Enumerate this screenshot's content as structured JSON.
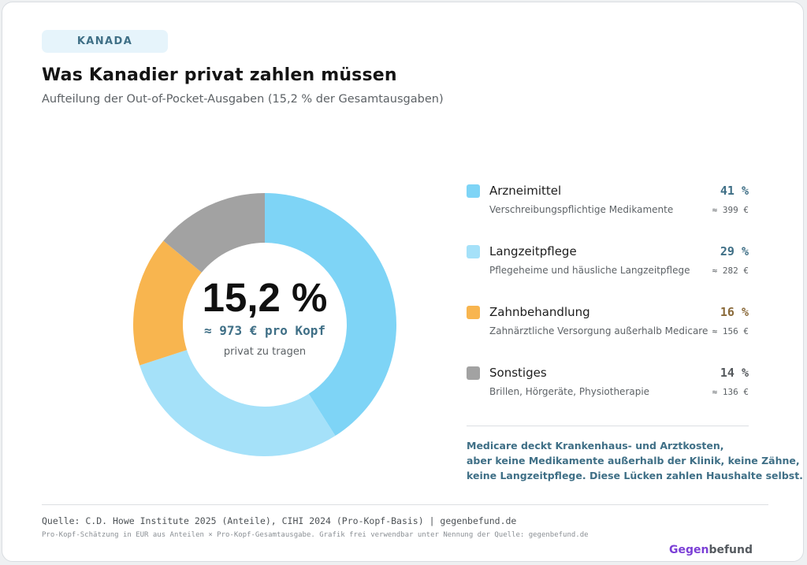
{
  "tag": "KANADA",
  "title": "Was Kanadier privat zahlen müssen",
  "subtitle": "Aufteilung der Out-of-Pocket-Ausgaben (15,2 % der Gesamtausgaben)",
  "center": {
    "value": "15,2 %",
    "per_capita": "≈ 973 € pro Kopf",
    "caption": "privat zu tragen"
  },
  "chart_data": {
    "type": "pie",
    "title": "Was Kanadier privat zahlen müssen",
    "subtitle": "Aufteilung der Out-of-Pocket-Ausgaben (15,2 % der Gesamtausgaben)",
    "donut": true,
    "legend_placement": "right",
    "categories": [
      "Arzneimittel",
      "Langzeitpflege",
      "Zahnbehandlung",
      "Sonstiges"
    ],
    "values": [
      41,
      29,
      16,
      14
    ],
    "colors": [
      "#7ed4f6",
      "#a5e1f9",
      "#f8b54f",
      "#a2a2a2"
    ]
  },
  "legend": [
    {
      "label": "Arzneimittel",
      "pct": "41 %",
      "desc": "Verschreibungspflichtige Medikamente",
      "eur": "≈ 399 €",
      "color": "#7ed4f6",
      "pct_color": "#3f6f86"
    },
    {
      "label": "Langzeitpflege",
      "pct": "29 %",
      "desc": "Pflegeheime und häusliche Langzeitpflege",
      "eur": "≈ 282 €",
      "color": "#a5e1f9",
      "pct_color": "#3f6f86"
    },
    {
      "label": "Zahnbehandlung",
      "pct": "16 %",
      "desc": "Zahnärztliche Versorgung außerhalb Medicare",
      "eur": "≈ 156 €",
      "color": "#f8b54f",
      "pct_color": "#8a6a3a"
    },
    {
      "label": "Sonstiges",
      "pct": "14 %",
      "desc": "Brillen, Hörgeräte, Physiotherapie",
      "eur": "≈ 136 €",
      "color": "#a2a2a2",
      "pct_color": "#55595d"
    }
  ],
  "note": [
    "Medicare deckt Krankenhaus- und Arztkosten,",
    "aber keine Medikamente außerhalb der Klinik, keine Zähne,",
    "keine Langzeitpflege. Diese Lücken zahlen Haushalte selbst."
  ],
  "footer": {
    "source": "Quelle: C.D. Howe Institute 2025 (Anteile), CIHI 2024 (Pro-Kopf-Basis) | gegenbefund.de",
    "fine": "Pro-Kopf-Schätzung in EUR aus Anteilen × Pro-Kopf-Gesamtausgabe. Grafik frei verwendbar unter Nennung der Quelle: gegenbefund.de",
    "brand_a": "Gegen",
    "brand_b": "befund"
  }
}
